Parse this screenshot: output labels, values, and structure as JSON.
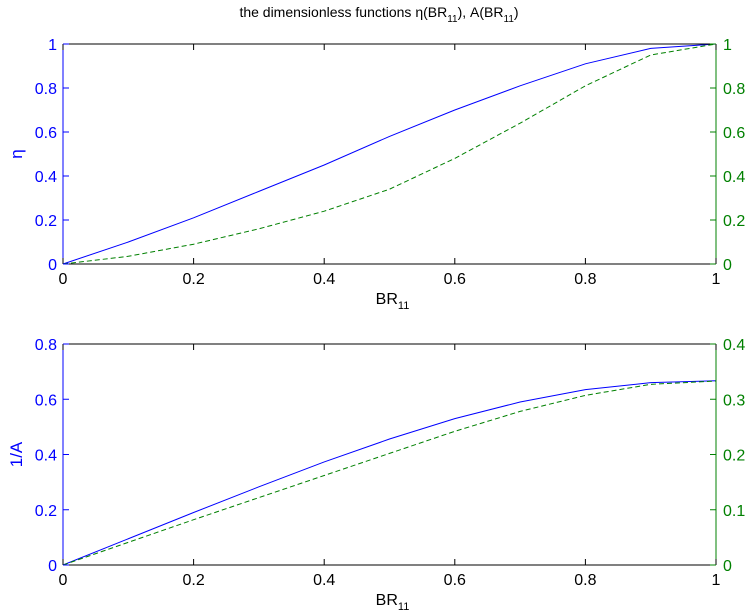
{
  "figure": {
    "title_main": "the dimensionless functions η(BR",
    "title_sub1": "11",
    "title_mid": "), A(BR",
    "title_sub2": "11",
    "title_end": ")"
  },
  "colors": {
    "left_axis": "#0000ff",
    "right_axis": "#008000",
    "frame": "#000000"
  },
  "chart_data": [
    {
      "type": "line",
      "title": "the dimensionless functions η(BR11), A(BR11)",
      "xlabel": "BR",
      "xlabel_sub": "11",
      "ylabel_left": "η",
      "ylabel_right": "",
      "xlim": [
        0,
        1
      ],
      "ylim_left": [
        0,
        1
      ],
      "ylim_right": [
        0,
        1
      ],
      "xticks": [
        "0",
        "0.2",
        "0.4",
        "0.6",
        "0.8",
        "1"
      ],
      "yticks_left": [
        "0",
        "0.2",
        "0.4",
        "0.6",
        "0.8",
        "1"
      ],
      "yticks_right": [
        "0",
        "0.2",
        "0.4",
        "0.6",
        "0.8",
        "1"
      ],
      "grid": false,
      "series": [
        {
          "axis": "left",
          "style": "solid",
          "color": "#0000ff",
          "x": [
            0,
            0.1,
            0.2,
            0.3,
            0.4,
            0.5,
            0.6,
            0.7,
            0.8,
            0.9,
            1.0
          ],
          "y": [
            0,
            0.1,
            0.21,
            0.33,
            0.45,
            0.58,
            0.7,
            0.81,
            0.91,
            0.98,
            1.0
          ]
        },
        {
          "axis": "right",
          "style": "dashed",
          "color": "#008000",
          "x": [
            0,
            0.1,
            0.2,
            0.3,
            0.4,
            0.5,
            0.6,
            0.7,
            0.8,
            0.9,
            1.0
          ],
          "y": [
            0,
            0.035,
            0.09,
            0.16,
            0.24,
            0.34,
            0.48,
            0.64,
            0.81,
            0.95,
            1.0
          ]
        }
      ]
    },
    {
      "type": "line",
      "xlabel": "BR",
      "xlabel_sub": "11",
      "ylabel_left": "1/A",
      "ylabel_right": "",
      "xlim": [
        0,
        1
      ],
      "ylim_left": [
        0,
        0.8
      ],
      "ylim_right": [
        0,
        0.4
      ],
      "xticks": [
        "0",
        "0.2",
        "0.4",
        "0.6",
        "0.8",
        "1"
      ],
      "yticks_left": [
        "0",
        "0.2",
        "0.4",
        "0.6",
        "0.8"
      ],
      "yticks_right": [
        "0",
        "0.1",
        "0.2",
        "0.3",
        "0.4"
      ],
      "grid": false,
      "series": [
        {
          "axis": "left",
          "style": "solid",
          "color": "#0000ff",
          "x": [
            0,
            0.1,
            0.2,
            0.3,
            0.4,
            0.5,
            0.6,
            0.7,
            0.8,
            0.9,
            1.0
          ],
          "y": [
            0,
            0.095,
            0.19,
            0.283,
            0.373,
            0.456,
            0.53,
            0.59,
            0.635,
            0.66,
            0.667
          ]
        },
        {
          "axis": "right",
          "style": "dashed",
          "color": "#008000",
          "x": [
            0,
            0.1,
            0.2,
            0.3,
            0.4,
            0.5,
            0.6,
            0.7,
            0.8,
            0.9,
            1.0
          ],
          "y": [
            0,
            0.041,
            0.082,
            0.122,
            0.162,
            0.202,
            0.242,
            0.278,
            0.307,
            0.327,
            0.333
          ]
        }
      ]
    }
  ]
}
